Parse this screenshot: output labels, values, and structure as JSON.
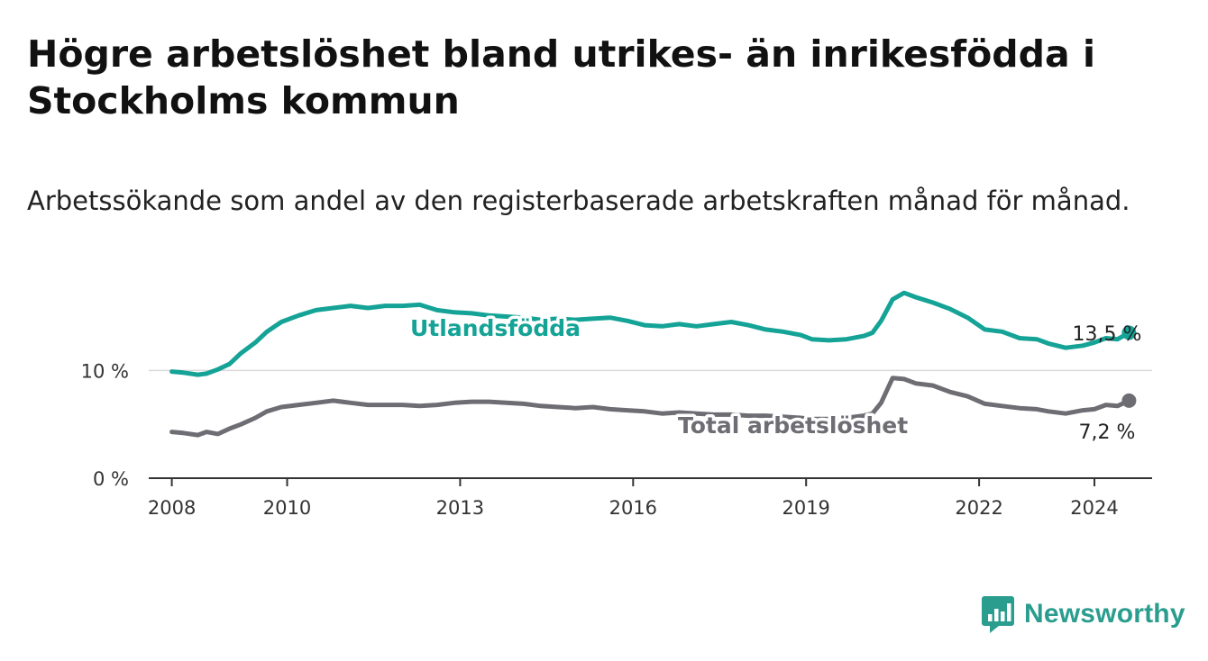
{
  "title": "Högre arbetslöshet bland utrikes- än inrikesfödda i Stockholms kommun",
  "subtitle": "Arbetssökande som andel av den registerbaserade arbetskraften månad för månad.",
  "brand": "Newsworthy",
  "colors": {
    "utrikes": "#14a396",
    "total": "#6e6d74",
    "grid": "#d9d9d9",
    "axis": "#333333",
    "brand": "#2a9d8f"
  },
  "chart_data": {
    "type": "line",
    "xlabel": "",
    "ylabel": "",
    "xlim": [
      2007.6,
      2025.0
    ],
    "ylim": [
      0,
      16.8
    ],
    "x_ticks": [
      2008,
      2010,
      2013,
      2016,
      2019,
      2022,
      2024
    ],
    "x_tick_labels": [
      "2008",
      "2010",
      "2013",
      "2016",
      "2019",
      "2022",
      "2024"
    ],
    "y_ticks": [
      0,
      10
    ],
    "y_tick_labels": [
      "0 %",
      "10 %"
    ],
    "series": [
      {
        "name": "Utlandsfödda",
        "end_label": "13,5 %",
        "x": [
          2008.0,
          2008.2,
          2008.45,
          2008.6,
          2008.8,
          2009.0,
          2009.2,
          2009.45,
          2009.65,
          2009.9,
          2010.2,
          2010.5,
          2010.8,
          2011.1,
          2011.4,
          2011.7,
          2012.0,
          2012.3,
          2012.6,
          2012.9,
          2013.2,
          2013.5,
          2013.8,
          2014.1,
          2014.4,
          2014.7,
          2015.0,
          2015.3,
          2015.6,
          2015.9,
          2016.2,
          2016.5,
          2016.8,
          2017.1,
          2017.4,
          2017.7,
          2018.0,
          2018.3,
          2018.6,
          2018.9,
          2019.1,
          2019.4,
          2019.7,
          2020.0,
          2020.15,
          2020.3,
          2020.5,
          2020.7,
          2020.9,
          2021.2,
          2021.5,
          2021.8,
          2022.1,
          2022.4,
          2022.7,
          2023.0,
          2023.2,
          2023.5,
          2023.8,
          2024.0,
          2024.2,
          2024.4,
          2024.6
        ],
        "values": [
          9.9,
          9.8,
          9.6,
          9.7,
          10.1,
          10.6,
          11.6,
          12.6,
          13.6,
          14.5,
          15.1,
          15.6,
          15.8,
          16.0,
          15.8,
          16.0,
          16.0,
          16.1,
          15.6,
          15.4,
          15.3,
          15.1,
          15.0,
          14.9,
          14.7,
          14.8,
          14.7,
          14.8,
          14.9,
          14.6,
          14.2,
          14.1,
          14.3,
          14.1,
          14.3,
          14.5,
          14.2,
          13.8,
          13.6,
          13.3,
          12.9,
          12.8,
          12.9,
          13.2,
          13.5,
          14.6,
          16.6,
          17.2,
          16.8,
          16.3,
          15.7,
          14.9,
          13.8,
          13.6,
          13.0,
          12.9,
          12.5,
          12.1,
          12.3,
          12.6,
          13.0,
          12.9,
          13.5
        ]
      },
      {
        "name": "Total arbetslöshet",
        "end_label": "7,2 %",
        "x": [
          2008.0,
          2008.2,
          2008.45,
          2008.6,
          2008.8,
          2009.0,
          2009.2,
          2009.45,
          2009.65,
          2009.9,
          2010.2,
          2010.5,
          2010.8,
          2011.1,
          2011.4,
          2011.7,
          2012.0,
          2012.3,
          2012.6,
          2012.9,
          2013.2,
          2013.5,
          2013.8,
          2014.1,
          2014.4,
          2014.7,
          2015.0,
          2015.3,
          2015.6,
          2015.9,
          2016.2,
          2016.5,
          2016.8,
          2017.1,
          2017.4,
          2017.7,
          2018.0,
          2018.3,
          2018.6,
          2018.9,
          2019.1,
          2019.4,
          2019.7,
          2020.0,
          2020.15,
          2020.3,
          2020.5,
          2020.7,
          2020.9,
          2021.2,
          2021.5,
          2021.8,
          2022.1,
          2022.4,
          2022.7,
          2023.0,
          2023.2,
          2023.5,
          2023.8,
          2024.0,
          2024.2,
          2024.4,
          2024.6
        ],
        "values": [
          4.3,
          4.2,
          4.0,
          4.3,
          4.1,
          4.6,
          5.0,
          5.6,
          6.2,
          6.6,
          6.8,
          7.0,
          7.2,
          7.0,
          6.8,
          6.8,
          6.8,
          6.7,
          6.8,
          7.0,
          7.1,
          7.1,
          7.0,
          6.9,
          6.7,
          6.6,
          6.5,
          6.6,
          6.4,
          6.3,
          6.2,
          6.0,
          6.1,
          6.0,
          5.9,
          5.9,
          5.8,
          5.8,
          5.7,
          5.6,
          5.5,
          5.5,
          5.6,
          5.8,
          6.0,
          7.0,
          9.3,
          9.2,
          8.8,
          8.6,
          8.0,
          7.6,
          6.9,
          6.7,
          6.5,
          6.4,
          6.2,
          6.0,
          6.3,
          6.4,
          6.8,
          6.7,
          7.2
        ]
      }
    ]
  }
}
